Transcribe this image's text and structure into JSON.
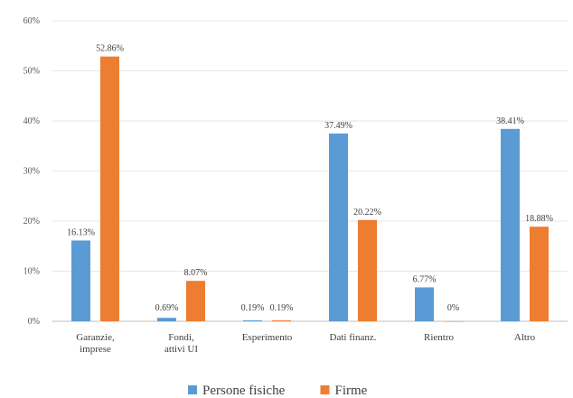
{
  "chart_data": {
    "type": "bar",
    "title": "",
    "xlabel": "",
    "ylabel": "",
    "ylim": [
      0,
      60
    ],
    "yticks": [
      "0%",
      "10%",
      "20%",
      "30%",
      "40%",
      "50%",
      "60%"
    ],
    "categories": [
      "Garanzie, imprese",
      "Fondi, attivi UI",
      "Esperimento",
      "Dati finanz.",
      "Rientro",
      "Altro"
    ],
    "series": [
      {
        "name": "Persone fisiche",
        "color": "#5b9bd5",
        "values": [
          16.13,
          0.69,
          0.19,
          37.49,
          6.77,
          38.41
        ],
        "labels": [
          "16.13%",
          "0.69%",
          "0.19%",
          "37.49%",
          "6.77%",
          "38.41%"
        ]
      },
      {
        "name": "Firme",
        "color": "#ed7d31",
        "values": [
          52.86,
          8.07,
          0.19,
          20.22,
          0,
          18.88
        ],
        "labels": [
          "52.86%",
          "8.07%",
          "0.19%",
          "20.22%",
          "0%",
          "18.88%"
        ]
      }
    ],
    "legend_position": "bottom",
    "grid": true
  }
}
